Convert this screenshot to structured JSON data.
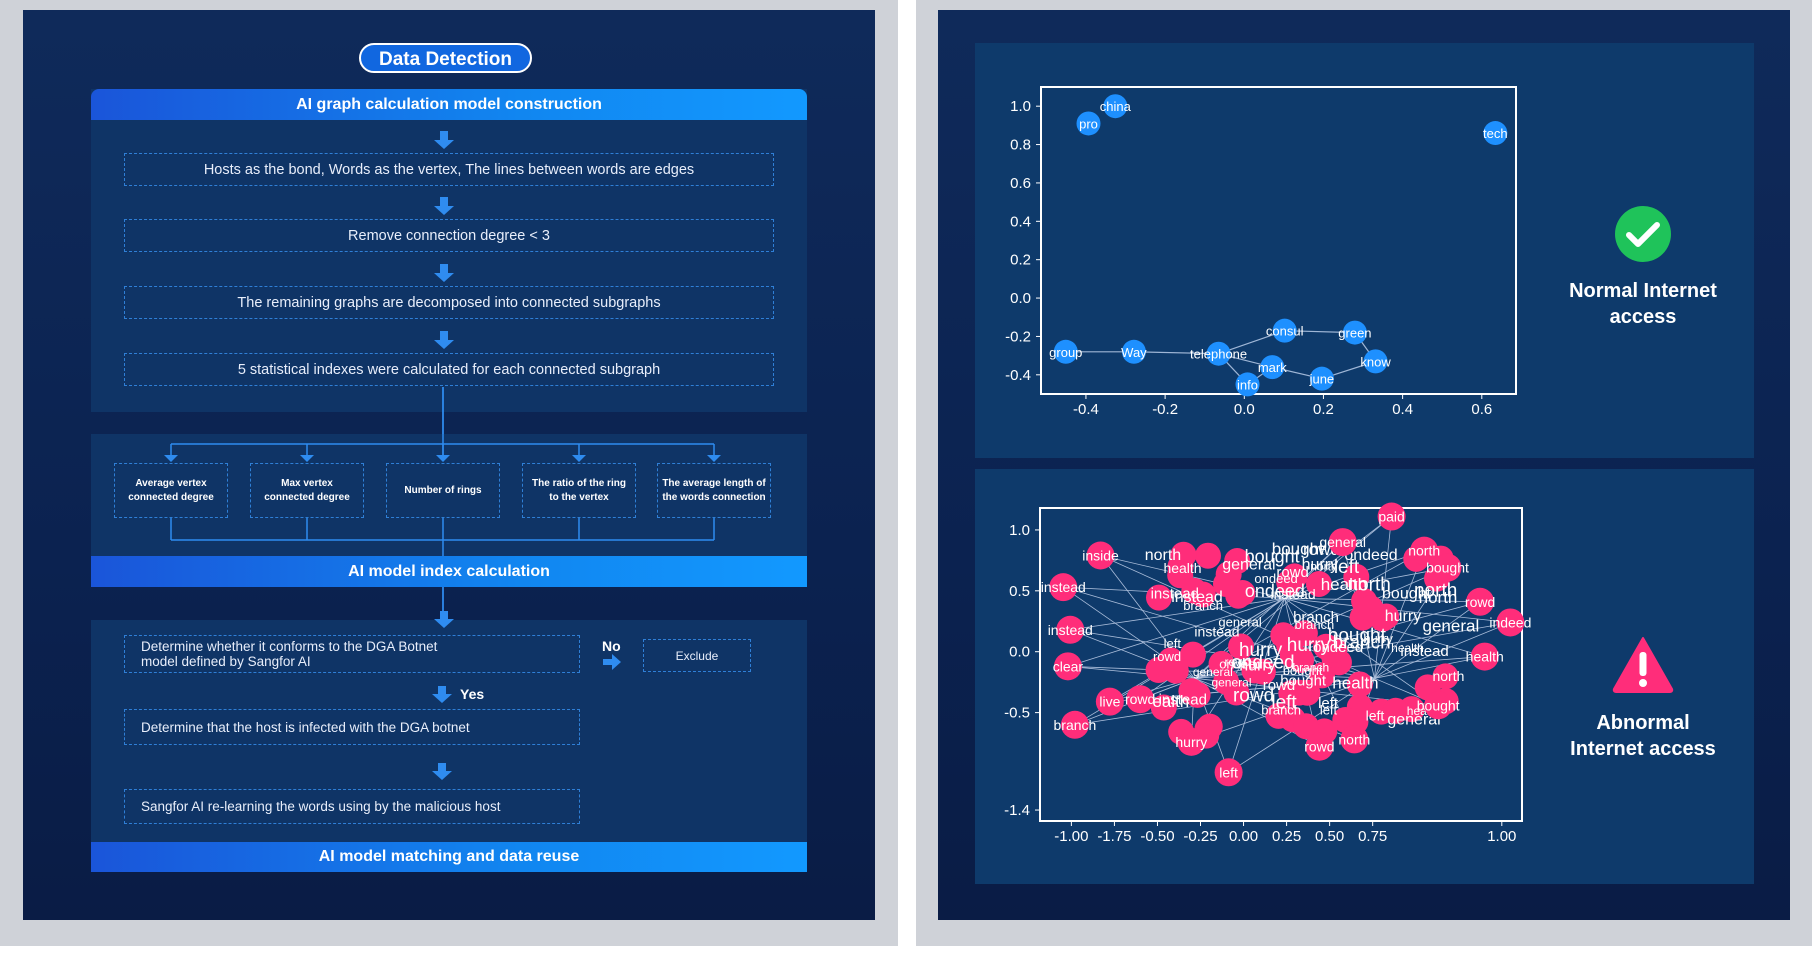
{
  "left_panel": {
    "title": "Data Detection",
    "section1_header": "AI graph calculation model construction",
    "steps": [
      "Hosts as the bond, Words as the vertex, The lines between words are edges",
      "Remove connection degree < 3",
      "The remaining graphs are decomposed into connected subgraphs",
      "5 statistical indexes were calculated for each connected subgraph"
    ],
    "indexes": [
      "Average vertex connected degree",
      "Max vertex connected degree",
      "Number of rings",
      "The ratio of the ring to the vertex",
      "The average length of the words connection"
    ],
    "section2_header": "AI model index calculation",
    "decision": "Determine whether it conforms to the DGA Botnet model defined by Sangfor AI",
    "no_label": "No",
    "exclude": "Exclude",
    "yes_label": "Yes",
    "infected": "Determine that the host is infected with the DGA botnet",
    "relearn": "Sangfor AI re-learning the words using by the malicious host",
    "section3_header": "AI model matching and data reuse"
  },
  "right_panel": {
    "normal_label_line1": "Normal Internet",
    "normal_label_line2": "access",
    "abnormal_label_line1": "Abnormal",
    "abnormal_label_line2": "Internet access"
  },
  "colors": {
    "normal_node": "#1e90ff",
    "abnormal_node": "#ff2d7a",
    "ok_icon": "#1fc35a",
    "alert_icon": "#ff2d7a"
  },
  "chart_data": [
    {
      "type": "scatter",
      "name": "normal-graph",
      "xlim": [
        -0.5,
        0.65
      ],
      "ylim": [
        -0.5,
        1.1
      ],
      "xticks": [
        "-0.4",
        "-0.2",
        "0.0",
        "0.2",
        "0.4",
        "0.6"
      ],
      "yticks": [
        "1.0",
        "0.8",
        "0.6",
        "0.4",
        "0.2",
        "0.0",
        "-0.2",
        "-0.4"
      ],
      "points": [
        {
          "label": "china",
          "x": -0.32,
          "y": 1.0
        },
        {
          "label": "pro",
          "x": -0.385,
          "y": 0.91
        },
        {
          "label": "tech",
          "x": 0.6,
          "y": 0.86
        },
        {
          "label": "group",
          "x": -0.44,
          "y": -0.28
        },
        {
          "label": "Way",
          "x": -0.275,
          "y": -0.28
        },
        {
          "label": "telephone",
          "x": -0.07,
          "y": -0.29
        },
        {
          "label": "consul",
          "x": 0.09,
          "y": -0.17
        },
        {
          "label": "green",
          "x": 0.26,
          "y": -0.18
        },
        {
          "label": "know",
          "x": 0.31,
          "y": -0.33
        },
        {
          "label": "mark",
          "x": 0.06,
          "y": -0.36
        },
        {
          "label": "june",
          "x": 0.18,
          "y": -0.42
        },
        {
          "label": "info",
          "x": 0.0,
          "y": -0.45
        }
      ],
      "edges": [
        [
          "group",
          "Way"
        ],
        [
          "Way",
          "telephone"
        ],
        [
          "telephone",
          "consul"
        ],
        [
          "consul",
          "green"
        ],
        [
          "green",
          "know"
        ],
        [
          "know",
          "june"
        ],
        [
          "june",
          "mark"
        ],
        [
          "mark",
          "telephone"
        ],
        [
          "mark",
          "info"
        ],
        [
          "telephone",
          "info"
        ]
      ]
    },
    {
      "type": "scatter",
      "name": "abnormal-graph",
      "xlim": [
        -1.05,
        1.02
      ],
      "ylim": [
        -1.45,
        1.12
      ],
      "xticks": [
        "-1.00",
        "-1.75",
        "-0.50",
        "-0.25",
        "0.00",
        "0.25",
        "0.50",
        "0.75",
        "1.00"
      ],
      "yticks": [
        "1.0",
        "0.5",
        "0.0",
        "-0.5",
        "-1.4"
      ],
      "points": [
        {
          "label": "paid",
          "x": 0.46,
          "y": 1.05
        },
        {
          "label": "general",
          "x": 0.25,
          "y": 0.84
        },
        {
          "label": "north",
          "x": 0.6,
          "y": 0.77
        },
        {
          "label": "inside",
          "x": -0.79,
          "y": 0.73
        },
        {
          "label": "bought",
          "x": 0.7,
          "y": 0.63
        },
        {
          "label": "instead",
          "x": -0.95,
          "y": 0.47
        },
        {
          "label": "rowd",
          "x": 0.84,
          "y": 0.35
        },
        {
          "label": "indeed",
          "x": 0.97,
          "y": 0.18
        },
        {
          "label": "instead",
          "x": -0.92,
          "y": 0.12
        },
        {
          "label": "clear",
          "x": -0.93,
          "y": -0.18
        },
        {
          "label": "health",
          "x": 0.86,
          "y": -0.1
        },
        {
          "label": "live",
          "x": -0.75,
          "y": -0.47
        },
        {
          "label": "rowd",
          "x": -0.62,
          "y": -0.45
        },
        {
          "label": "bought",
          "x": 0.66,
          "y": -0.5
        },
        {
          "label": "branch",
          "x": -0.9,
          "y": -0.66
        },
        {
          "label": "hurry",
          "x": -0.4,
          "y": -0.8
        },
        {
          "label": "north",
          "x": 0.3,
          "y": -0.78
        },
        {
          "label": "rowd",
          "x": 0.15,
          "y": -0.84
        },
        {
          "label": "left",
          "x": -0.24,
          "y": -1.05
        }
      ]
    }
  ]
}
